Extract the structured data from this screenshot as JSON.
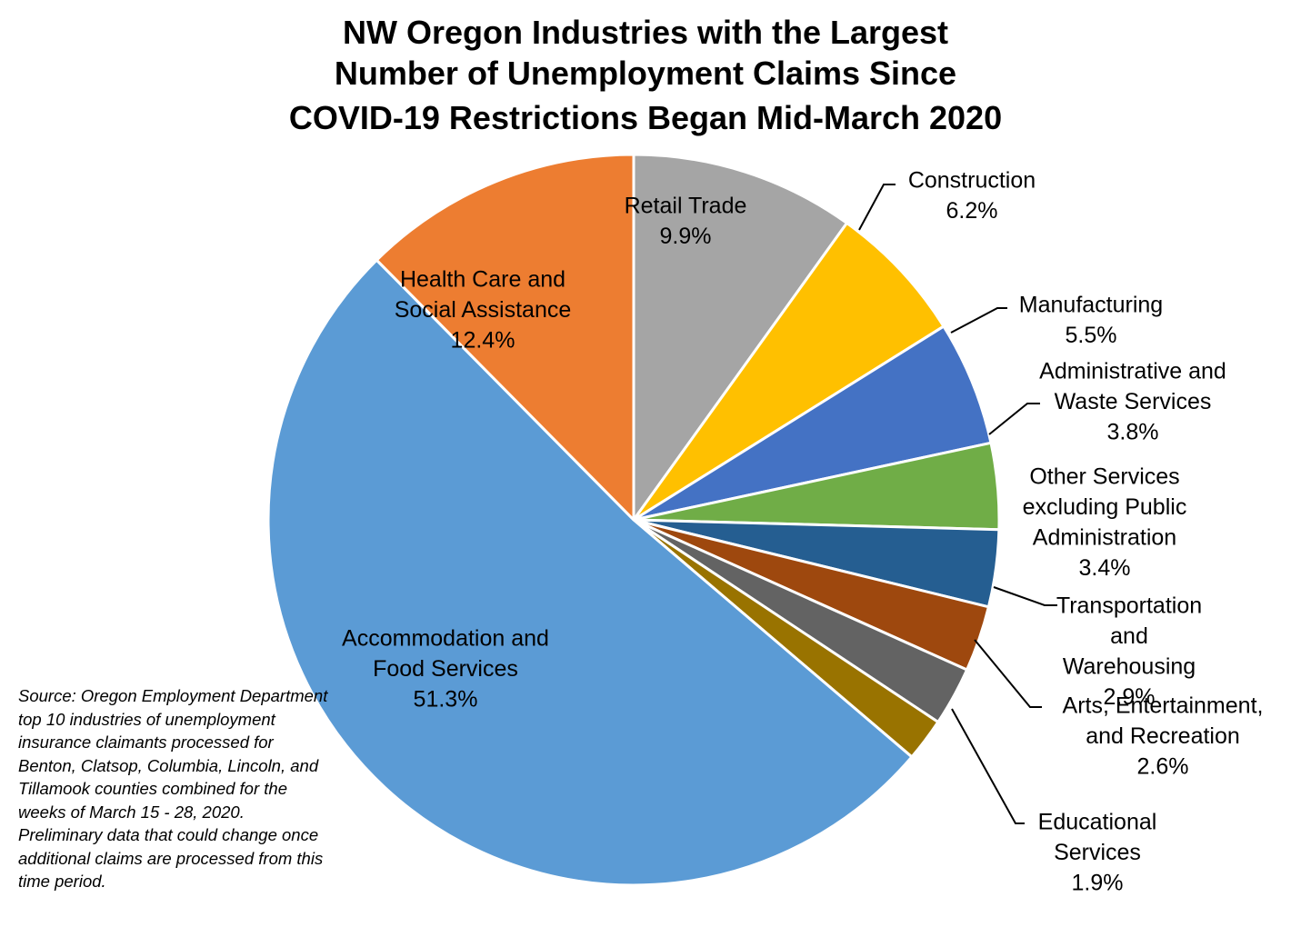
{
  "chart_data": {
    "type": "pie",
    "title": [
      "NW Oregon Industries with the Largest",
      "Number of Unemployment Claims Since",
      "COVID-19 Restrictions Began Mid-March 2020"
    ],
    "slices": [
      {
        "label": [
          "Accommodation and",
          "Food Services"
        ],
        "value_label": "51.3%",
        "value": 51.3,
        "color": "#5B9BD5"
      },
      {
        "label": [
          "Health Care and",
          "Social Assistance"
        ],
        "value_label": "12.4%",
        "value": 12.4,
        "color": "#ED7D31"
      },
      {
        "label": [
          "Retail Trade"
        ],
        "value_label": "9.9%",
        "value": 9.9,
        "color": "#A5A5A5"
      },
      {
        "label": [
          "Construction"
        ],
        "value_label": "6.2%",
        "value": 6.2,
        "color": "#FFC000"
      },
      {
        "label": [
          "Manufacturing"
        ],
        "value_label": "5.5%",
        "value": 5.5,
        "color": "#4472C4"
      },
      {
        "label": [
          "Administrative and",
          "Waste Services"
        ],
        "value_label": "3.8%",
        "value": 3.8,
        "color": "#70AD47"
      },
      {
        "label": [
          "Other Services",
          "excluding Public",
          "Administration"
        ],
        "value_label": "3.4%",
        "value": 3.4,
        "color": "#255E91"
      },
      {
        "label": [
          "Transportation",
          "and",
          "Warehousing"
        ],
        "value_label": "2.9%",
        "value": 2.9,
        "color": "#9E480E"
      },
      {
        "label": [
          "Arts, Entertainment,",
          "and Recreation"
        ],
        "value_label": "2.6%",
        "value": 2.6,
        "color": "#636363"
      },
      {
        "label": [
          "Educational",
          "Services"
        ],
        "value_label": "1.9%",
        "value": 1.9,
        "color": "#997300"
      }
    ],
    "start": "12 o'clock, clockwise from Retail Trade"
  },
  "source_note": "Source: Oregon Employment Department top 10 industries of unemployment insurance claimants processed for Benton, Clatsop, Columbia, Lincoln, and Tillamook counties combined for the weeks of March 15 - 28, 2020. Preliminary data that could change once additional claims are processed from this time period."
}
